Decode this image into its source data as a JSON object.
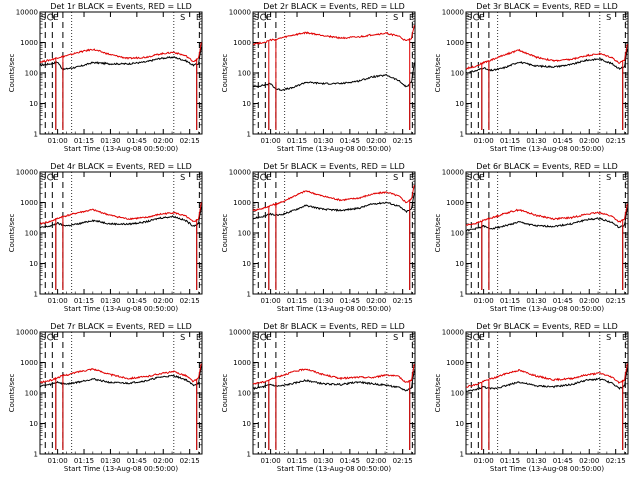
{
  "figure": {
    "title_template": "Det {d}r BLACK = Events, RED = LLD",
    "xlabel": "Start Time (13-Aug-08 00:50:00)",
    "ylabel": "Counts/sec",
    "x_tick_labels": [
      "01:00",
      "01:15",
      "01:30",
      "01:45",
      "02:00",
      "02:15"
    ],
    "y_tick_labels": [
      "1",
      "10",
      "100",
      "1000",
      "10000"
    ],
    "marker_letters": [
      "S",
      "E"
    ],
    "colors": {
      "events": "#000000",
      "lld": "#e00000"
    }
  },
  "chart_data": [
    {
      "type": "line",
      "detector": 1,
      "title": "Det 1r BLACK = Events, RED = LLD",
      "xlim": [
        50,
        142
      ],
      "ylim": [
        1,
        10000
      ],
      "yscale": "log",
      "x": [
        50,
        56,
        60,
        63,
        66,
        72,
        80,
        90,
        100,
        110,
        118,
        126,
        133,
        137,
        140,
        142
      ],
      "series": [
        {
          "name": "Events",
          "values": [
            180,
            200,
            230,
            130,
            140,
            160,
            220,
            200,
            200,
            230,
            300,
            330,
            250,
            180,
            200,
            1000
          ]
        },
        {
          "name": "LLD",
          "values": [
            230,
            270,
            320,
            350,
            380,
            480,
            600,
            400,
            300,
            330,
            420,
            480,
            360,
            240,
            300,
            1300
          ]
        }
      ]
    },
    {
      "type": "line",
      "detector": 2,
      "title": "Det 2r BLACK = Events, RED = LLD",
      "xlim": [
        50,
        142
      ],
      "ylim": [
        1,
        10000
      ],
      "yscale": "log",
      "x": [
        50,
        56,
        60,
        63,
        66,
        72,
        80,
        90,
        100,
        110,
        118,
        126,
        133,
        137,
        140,
        142
      ],
      "series": [
        {
          "name": "Events",
          "values": [
            35,
            40,
            45,
            30,
            28,
            32,
            50,
            45,
            45,
            55,
            75,
            85,
            55,
            35,
            50,
            300
          ]
        },
        {
          "name": "LLD",
          "values": [
            900,
            1000,
            1200,
            1250,
            1400,
            1700,
            2100,
            1700,
            1400,
            1500,
            1800,
            2000,
            1600,
            1100,
            1400,
            5000
          ]
        }
      ]
    },
    {
      "type": "line",
      "detector": 3,
      "title": "Det 3r BLACK = Events, RED = LLD",
      "xlim": [
        50,
        142
      ],
      "ylim": [
        1,
        10000
      ],
      "yscale": "log",
      "x": [
        50,
        56,
        60,
        63,
        66,
        72,
        80,
        90,
        100,
        110,
        118,
        126,
        133,
        137,
        140,
        142
      ],
      "series": [
        {
          "name": "Events",
          "values": [
            100,
            120,
            150,
            120,
            125,
            150,
            230,
            170,
            160,
            190,
            260,
            290,
            200,
            140,
            160,
            900
          ]
        },
        {
          "name": "LLD",
          "values": [
            140,
            170,
            220,
            250,
            290,
            400,
            560,
            330,
            250,
            280,
            370,
            430,
            320,
            210,
            260,
            1200
          ]
        }
      ]
    },
    {
      "type": "line",
      "detector": 4,
      "title": "Det 4r BLACK = Events, RED = LLD",
      "xlim": [
        50,
        142
      ],
      "ylim": [
        1,
        10000
      ],
      "yscale": "log",
      "x": [
        50,
        56,
        60,
        63,
        66,
        72,
        80,
        90,
        100,
        110,
        118,
        126,
        133,
        137,
        140,
        142
      ],
      "series": [
        {
          "name": "Events",
          "values": [
            150,
            170,
            210,
            180,
            175,
            200,
            260,
            200,
            195,
            230,
            310,
            350,
            250,
            170,
            200,
            1000
          ]
        },
        {
          "name": "LLD",
          "values": [
            200,
            240,
            300,
            350,
            380,
            470,
            580,
            380,
            290,
            320,
            410,
            470,
            350,
            230,
            290,
            1300
          ]
        }
      ]
    },
    {
      "type": "line",
      "detector": 5,
      "title": "Det 5r BLACK = Events, RED = LLD",
      "xlim": [
        50,
        142
      ],
      "ylim": [
        1,
        10000
      ],
      "yscale": "log",
      "x": [
        50,
        56,
        60,
        63,
        66,
        72,
        80,
        90,
        100,
        110,
        118,
        126,
        133,
        137,
        140,
        142
      ],
      "series": [
        {
          "name": "Events",
          "values": [
            300,
            350,
            420,
            380,
            400,
            520,
            800,
            600,
            550,
            650,
            900,
            1000,
            750,
            500,
            600,
            3000
          ]
        },
        {
          "name": "LLD",
          "values": [
            550,
            650,
            800,
            900,
            1000,
            1500,
            2400,
            1600,
            1200,
            1400,
            1900,
            2200,
            1600,
            1000,
            1300,
            5000
          ]
        }
      ]
    },
    {
      "type": "line",
      "detector": 6,
      "title": "Det 6r BLACK = Events, RED = LLD",
      "xlim": [
        50,
        142
      ],
      "ylim": [
        1,
        10000
      ],
      "yscale": "log",
      "x": [
        50,
        56,
        60,
        63,
        66,
        72,
        80,
        90,
        100,
        110,
        118,
        126,
        133,
        137,
        140,
        142
      ],
      "series": [
        {
          "name": "Events",
          "values": [
            120,
            140,
            170,
            140,
            145,
            170,
            230,
            170,
            165,
            200,
            270,
            300,
            220,
            150,
            180,
            900
          ]
        },
        {
          "name": "LLD",
          "values": [
            180,
            210,
            260,
            300,
            330,
            440,
            580,
            380,
            290,
            320,
            410,
            470,
            350,
            230,
            280,
            1200
          ]
        }
      ]
    },
    {
      "type": "line",
      "detector": 7,
      "title": "Det 7r BLACK = Events, RED = LLD",
      "xlim": [
        50,
        142
      ],
      "ylim": [
        1,
        10000
      ],
      "yscale": "log",
      "x": [
        50,
        56,
        60,
        63,
        66,
        72,
        80,
        90,
        100,
        110,
        118,
        126,
        133,
        137,
        140,
        142
      ],
      "series": [
        {
          "name": "Events",
          "values": [
            170,
            190,
            230,
            200,
            200,
            230,
            290,
            220,
            210,
            250,
            330,
            370,
            270,
            180,
            210,
            1000
          ]
        },
        {
          "name": "LLD",
          "values": [
            220,
            260,
            320,
            370,
            400,
            500,
            620,
            400,
            300,
            340,
            430,
            500,
            370,
            240,
            300,
            1300
          ]
        }
      ]
    },
    {
      "type": "line",
      "detector": 8,
      "title": "Det 8r BLACK = Events, RED = LLD",
      "xlim": [
        50,
        142
      ],
      "ylim": [
        1,
        10000
      ],
      "yscale": "log",
      "x": [
        50,
        56,
        60,
        63,
        66,
        72,
        80,
        90,
        100,
        110,
        118,
        126,
        133,
        137,
        140,
        142
      ],
      "series": [
        {
          "name": "Events",
          "values": [
            140,
            160,
            190,
            170,
            170,
            200,
            260,
            200,
            190,
            230,
            200,
            180,
            150,
            120,
            150,
            800
          ]
        },
        {
          "name": "LLD",
          "values": [
            200,
            230,
            280,
            330,
            370,
            480,
            620,
            400,
            300,
            330,
            320,
            400,
            340,
            220,
            270,
            1200
          ]
        }
      ]
    },
    {
      "type": "line",
      "detector": 9,
      "title": "Det 9r BLACK = Events, RED = LLD",
      "xlim": [
        50,
        142
      ],
      "ylim": [
        1,
        10000
      ],
      "yscale": "log",
      "x": [
        50,
        56,
        60,
        63,
        66,
        72,
        80,
        90,
        100,
        110,
        118,
        126,
        133,
        137,
        140,
        142
      ],
      "series": [
        {
          "name": "Events",
          "values": [
            110,
            130,
            160,
            140,
            140,
            170,
            230,
            170,
            160,
            190,
            260,
            290,
            210,
            140,
            170,
            900
          ]
        },
        {
          "name": "LLD",
          "values": [
            160,
            190,
            240,
            280,
            310,
            420,
            560,
            360,
            270,
            300,
            390,
            450,
            330,
            220,
            270,
            1200
          ]
        }
      ]
    }
  ]
}
